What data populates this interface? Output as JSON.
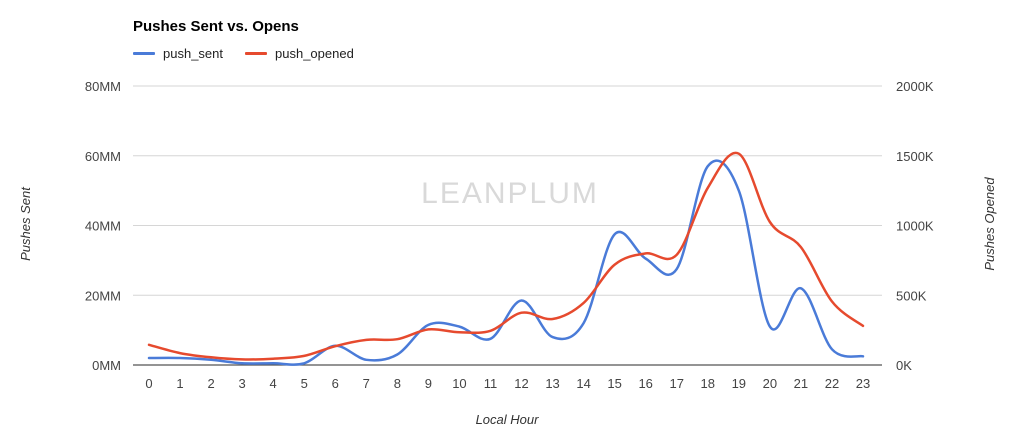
{
  "watermark": "LEANPLUM",
  "chart_data": {
    "type": "line",
    "title": "Pushes Sent vs. Opens",
    "xlabel": "Local Hour",
    "ylabel_left": "Pushes Sent",
    "ylabel_right": "Pushes Opened",
    "x": [
      0,
      1,
      2,
      3,
      4,
      5,
      6,
      7,
      8,
      9,
      10,
      11,
      12,
      13,
      14,
      15,
      16,
      17,
      18,
      19,
      20,
      21,
      22,
      23
    ],
    "y_left_ticks": [
      "0MM",
      "20MM",
      "40MM",
      "60MM",
      "80MM"
    ],
    "y_left_range": [
      0,
      80
    ],
    "y_right_ticks": [
      "0K",
      "500K",
      "1000K",
      "1500K",
      "2000K"
    ],
    "y_right_range": [
      0,
      2000
    ],
    "grid": true,
    "legend_position": "top-left",
    "series": [
      {
        "name": "push_sent",
        "axis": "left",
        "unit": "MM",
        "color": "#4a7bd8",
        "values": [
          2,
          2,
          1.5,
          0.5,
          0.5,
          0.5,
          5.5,
          1.5,
          3,
          11.5,
          11,
          7.5,
          18.5,
          8,
          12,
          37.5,
          30.5,
          27.5,
          57,
          50,
          11,
          22,
          4.5,
          2.5
        ]
      },
      {
        "name": "push_opened",
        "axis": "right",
        "unit": "K",
        "color": "#e64a2e",
        "values": [
          145,
          85,
          55,
          40,
          45,
          65,
          135,
          180,
          185,
          255,
          235,
          245,
          375,
          330,
          445,
          720,
          800,
          790,
          1270,
          1515,
          1025,
          845,
          455,
          280
        ]
      }
    ]
  }
}
